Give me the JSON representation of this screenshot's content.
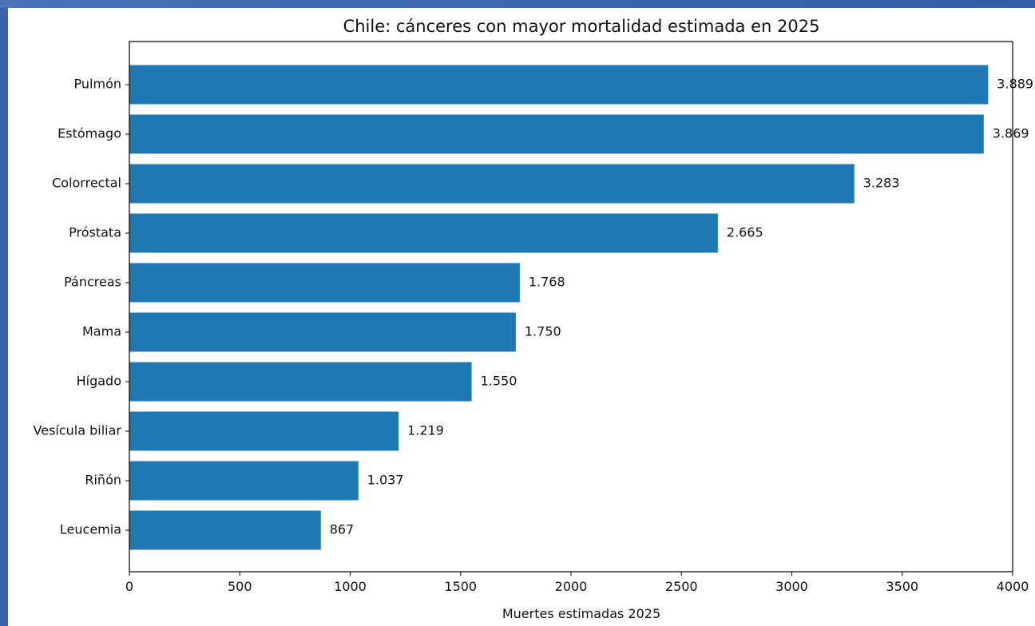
{
  "chart_data": {
    "type": "bar",
    "orientation": "horizontal",
    "title": "Chile: cánceres con mayor mortalidad estimada en 2025",
    "xlabel": "Muertes estimadas 2025",
    "ylabel": "",
    "categories": [
      "Pulmón",
      "Estómago",
      "Colorrectal",
      "Próstata",
      "Páncreas",
      "Mama",
      "Hígado",
      "Vesícula biliar",
      "Riñón",
      "Leucemia"
    ],
    "values": [
      3889,
      3869,
      3283,
      2665,
      1768,
      1750,
      1550,
      1219,
      1037,
      867
    ],
    "value_labels": [
      "3.889",
      "3.869",
      "3.283",
      "2.665",
      "1.768",
      "1.750",
      "1.550",
      "1.219",
      "1.037",
      "867"
    ],
    "xlim": [
      0,
      4000
    ],
    "xticks": [
      0,
      500,
      1000,
      1500,
      2000,
      2500,
      3000,
      3500,
      4000
    ],
    "xtick_labels": [
      "0",
      "500",
      "1000",
      "1500",
      "2000",
      "2500",
      "3000",
      "3500",
      "4000"
    ],
    "bar_color": "#1f77b4",
    "grid": false,
    "legend": "none"
  }
}
